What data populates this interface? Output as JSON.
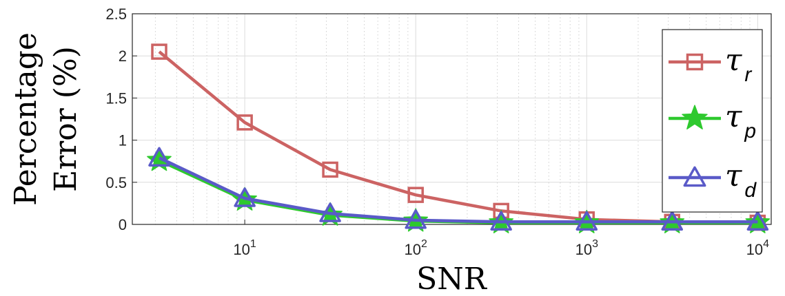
{
  "chart_data": {
    "type": "line",
    "xscale": "log",
    "xlabel": "SNR",
    "ylabel_lines": [
      "Percentage",
      "Error (%)"
    ],
    "xlim": [
      2.2,
      12000
    ],
    "ylim": [
      0,
      2.5
    ],
    "yticks": [
      {
        "v": 0,
        "label": "0"
      },
      {
        "v": 0.5,
        "label": "0.5"
      },
      {
        "v": 1,
        "label": "1"
      },
      {
        "v": 1.5,
        "label": "1.5"
      },
      {
        "v": 2,
        "label": "2"
      },
      {
        "v": 2.5,
        "label": "2.5"
      }
    ],
    "xticks": [
      {
        "v": 10,
        "base": "10",
        "exp": "1"
      },
      {
        "v": 100,
        "base": "10",
        "exp": "2"
      },
      {
        "v": 1000,
        "base": "10",
        "exp": "3"
      },
      {
        "v": 10000,
        "base": "10",
        "exp": "4"
      }
    ],
    "grid": true,
    "legend_position": "right",
    "x": [
      3.16,
      10,
      31.6,
      100,
      316,
      1000,
      3160,
      10000
    ],
    "series": [
      {
        "symbol": "τ",
        "sub": "r",
        "marker": "square",
        "color": "#cc6363",
        "values": [
          2.05,
          1.21,
          0.65,
          0.35,
          0.16,
          0.06,
          0.03,
          0.02
        ]
      },
      {
        "symbol": "τ",
        "sub": "p",
        "marker": "star",
        "color": "#2ec92e",
        "values": [
          0.76,
          0.29,
          0.11,
          0.04,
          0.02,
          0.02,
          0.02,
          0.02
        ]
      },
      {
        "symbol": "τ",
        "sub": "d",
        "marker": "triangle",
        "color": "#5a5ac8",
        "values": [
          0.79,
          0.31,
          0.13,
          0.05,
          0.03,
          0.03,
          0.03,
          0.03
        ]
      }
    ]
  }
}
